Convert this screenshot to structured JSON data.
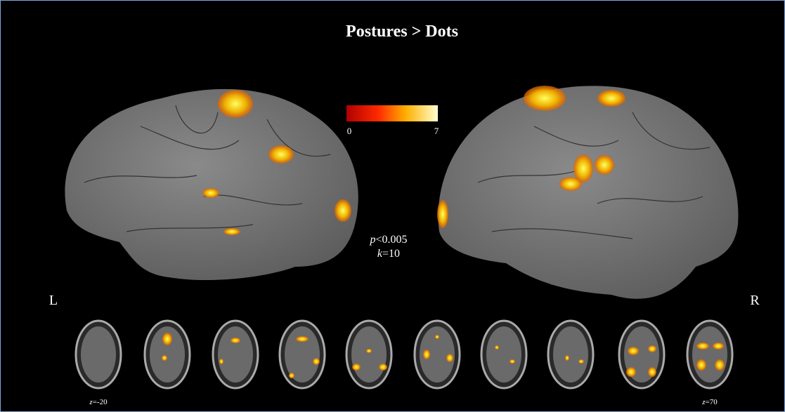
{
  "title": "Postures > Dots",
  "colorbar": {
    "ticks": [
      0,
      7
    ]
  },
  "stats": [
    {
      "symbol": "p",
      "text": "<0.005"
    },
    {
      "symbol": "k",
      "text": "=10"
    }
  ],
  "hemispheres": {
    "left": "L",
    "right": "R"
  },
  "slices": [
    {
      "symbol": "z",
      "text": "=-20"
    },
    {
      "symbol": "z",
      "text": "=70"
    }
  ]
}
